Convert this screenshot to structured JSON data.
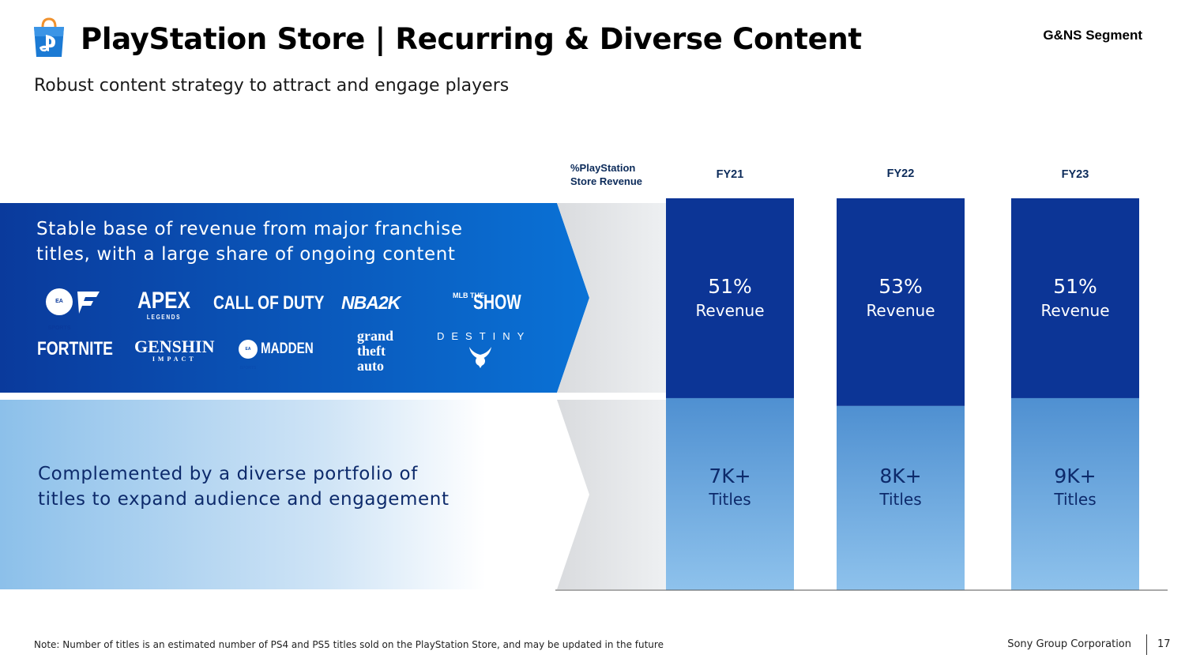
{
  "header": {
    "title": "PlayStation Store | Recurring & Diverse Content",
    "subtitle": "Robust content strategy to attract and engage players",
    "segment": "G&NS Segment"
  },
  "panels": {
    "top_text_line1": "Stable base of revenue from major franchise",
    "top_text_line2": "titles, with a large share of ongoing content",
    "bottom_text_line1": "Complemented by a diverse portfolio of",
    "bottom_text_line2": "titles to expand audience and engagement"
  },
  "logos": {
    "ea_fc_badge": "EA SPORTS",
    "apex": "APEX",
    "apex_sub": "LEGENDS",
    "cod": "CALL OF DUTY",
    "nba": "NBA2K",
    "show_small": "MLB THE",
    "show": "SHOW",
    "fortnite": "FORTNITE",
    "genshin": "GENSHIN",
    "genshin_sub": "IMPACT",
    "madden_badge": "EA SPORTS",
    "madden": "MADDEN",
    "gta_line1": "grand",
    "gta_line2": "theft",
    "gta_line3": "auto",
    "destiny": "DESTINY"
  },
  "chart_data": {
    "type": "bar",
    "row_header": "%PlayStation Store Revenue",
    "categories": [
      "FY21",
      "FY22",
      "FY23"
    ],
    "series": [
      {
        "values": [
          51,
          53,
          51
        ],
        "labels": [
          "51%",
          "53%",
          "51%"
        ],
        "unit": "Revenue"
      },
      {
        "values": [
          7000,
          8000,
          9000
        ],
        "labels": [
          "7K+",
          "8K+",
          "9K+"
        ],
        "unit": "Titles"
      }
    ]
  },
  "footer": {
    "note": "Note: Number of titles is an estimated number of PS4 and PS5 titles sold on the PlayStation Store, and may be updated in the future",
    "company": "Sony Group Corporation",
    "page": "17"
  },
  "colors": {
    "dark_blue": "#0c3596",
    "bright_blue": "#0a72d6",
    "light_blue": "#7fb6e4",
    "title_navy": "#0d2a6b"
  }
}
